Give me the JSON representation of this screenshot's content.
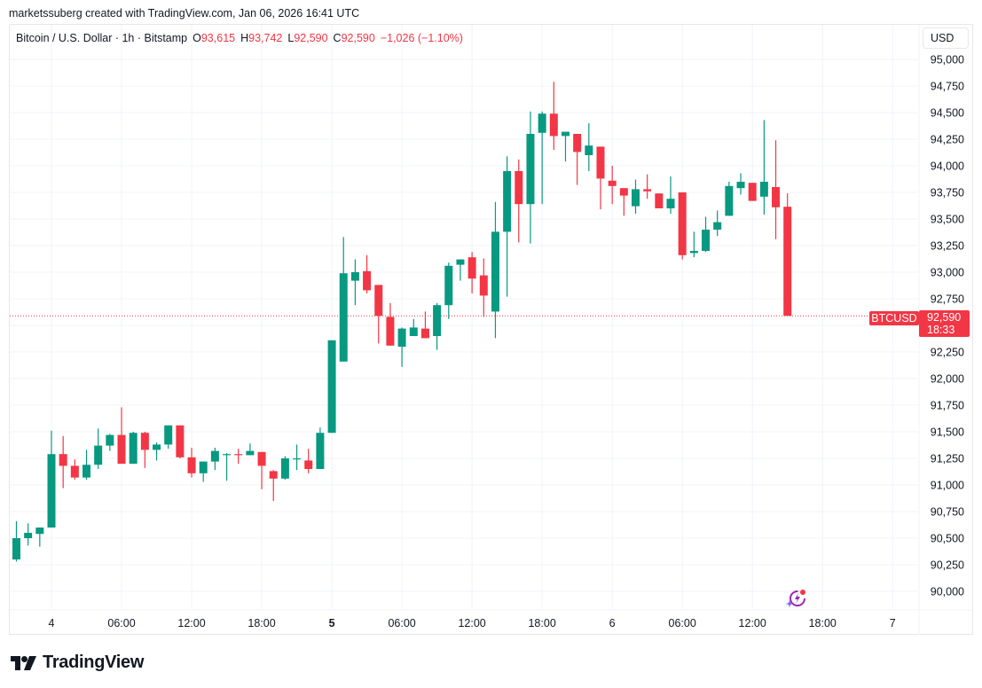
{
  "credit": "marketssuberg created with TradingView.com, Jan 06, 2026 16:41 UTC",
  "legend": {
    "symbol": "Bitcoin / U.S. Dollar · 1h · Bitstamp",
    "o_label": "O",
    "o": "93,615",
    "h_label": "H",
    "h": "93,742",
    "l_label": "L",
    "l": "92,590",
    "c_label": "C",
    "c": "92,590",
    "change": "−1,026 (−1.10%)"
  },
  "currency_button": "USD",
  "last_price": {
    "symbol": "BTCUSD",
    "price": "92,590",
    "countdown": "18:33"
  },
  "logo": "TradingView",
  "colors": {
    "up": "#089981",
    "down": "#f23645",
    "grid": "#f0f3fa",
    "text": "#131722"
  },
  "chart_data": {
    "type": "candlestick",
    "title": "Bitcoin / U.S. Dollar · 1h · Bitstamp",
    "interval": "1h",
    "ylim": [
      89900,
      95100
    ],
    "y_ticks": [
      95000,
      94750,
      94500,
      94250,
      94000,
      93750,
      93500,
      93250,
      93000,
      92750,
      92500,
      92250,
      92000,
      91750,
      91500,
      91250,
      91000,
      90750,
      90500,
      90250,
      90000
    ],
    "y_tick_labels": [
      "95,000",
      "94,750",
      "94,500",
      "94,250",
      "94,000",
      "93,750",
      "93,500",
      "93,250",
      "93,000",
      "92,750",
      "92,500",
      "92,250",
      "92,000",
      "91,750",
      "91,500",
      "91,250",
      "91,000",
      "90,750",
      "90,500",
      "90,250",
      "90,000"
    ],
    "x_tick_labels": [
      {
        "label": "4",
        "hour": 0,
        "bold": false
      },
      {
        "label": "06:00",
        "hour": 6
      },
      {
        "label": "12:00",
        "hour": 12
      },
      {
        "label": "18:00",
        "hour": 18
      },
      {
        "label": "5",
        "hour": 24,
        "bold": true
      },
      {
        "label": "06:00",
        "hour": 30
      },
      {
        "label": "12:00",
        "hour": 36
      },
      {
        "label": "18:00",
        "hour": 42
      },
      {
        "label": "6",
        "hour": 48
      },
      {
        "label": "06:00",
        "hour": 54
      },
      {
        "label": "12:00",
        "hour": 60
      },
      {
        "label": "18:00",
        "hour": 66
      },
      {
        "label": "7",
        "hour": 72
      }
    ],
    "last_price_line": 92590,
    "candles_start_hour": -3,
    "candles": [
      [
        90300,
        90660,
        90280,
        90500
      ],
      [
        90500,
        90640,
        90430,
        90550
      ],
      [
        90540,
        90600,
        90420,
        90600
      ],
      [
        90600,
        91510,
        90600,
        91290
      ],
      [
        91290,
        91460,
        90970,
        91180
      ],
      [
        91180,
        91240,
        91050,
        91070
      ],
      [
        91070,
        91330,
        91050,
        91190
      ],
      [
        91190,
        91530,
        91150,
        91370
      ],
      [
        91370,
        91480,
        91320,
        91470
      ],
      [
        91470,
        91730,
        91200,
        91200
      ],
      [
        91200,
        91500,
        91200,
        91490
      ],
      [
        91490,
        91500,
        91160,
        91330
      ],
      [
        91330,
        91400,
        91230,
        91380
      ],
      [
        91380,
        91550,
        91340,
        91560
      ],
      [
        91560,
        91560,
        91250,
        91260
      ],
      [
        91260,
        91350,
        91070,
        91110
      ],
      [
        91110,
        91220,
        91030,
        91220
      ],
      [
        91220,
        91350,
        91140,
        91320
      ],
      [
        91290,
        91300,
        91040,
        91290
      ],
      [
        91290,
        91340,
        91200,
        91280
      ],
      [
        91280,
        91390,
        91290,
        91320
      ],
      [
        91310,
        91310,
        90960,
        91180
      ],
      [
        91130,
        91140,
        90850,
        91060
      ],
      [
        91060,
        91270,
        91050,
        91250
      ],
      [
        91240,
        91380,
        91140,
        91250
      ],
      [
        91230,
        91340,
        91110,
        91150
      ],
      [
        91150,
        91540,
        91160,
        91490
      ],
      [
        91490,
        92360,
        91490,
        92360
      ],
      [
        92160,
        93330,
        92230,
        92990
      ],
      [
        92920,
        93120,
        92690,
        93000
      ],
      [
        93010,
        93160,
        92800,
        92830
      ],
      [
        92880,
        92880,
        92330,
        92590
      ],
      [
        92580,
        92710,
        92310,
        92310
      ],
      [
        92300,
        92480,
        92110,
        92470
      ],
      [
        92400,
        92560,
        92400,
        92480
      ],
      [
        92470,
        92630,
        92400,
        92380
      ],
      [
        92400,
        92710,
        92270,
        92690
      ],
      [
        92690,
        93090,
        92560,
        93060
      ],
      [
        93070,
        93120,
        92920,
        93120
      ],
      [
        93140,
        93190,
        92800,
        92940
      ],
      [
        92970,
        93130,
        92580,
        92780
      ],
      [
        92630,
        93660,
        92380,
        93380
      ],
      [
        93380,
        94090,
        92770,
        93950
      ],
      [
        93950,
        94060,
        93280,
        93640
      ],
      [
        93640,
        94510,
        93270,
        94300
      ],
      [
        94310,
        94510,
        93640,
        94490
      ],
      [
        94490,
        94790,
        94150,
        94280
      ],
      [
        94280,
        94250,
        94040,
        94320
      ],
      [
        94300,
        94220,
        93820,
        94130
      ],
      [
        94100,
        94400,
        93950,
        94190
      ],
      [
        94180,
        94180,
        93590,
        93880
      ],
      [
        93860,
        94000,
        93640,
        93810
      ],
      [
        93790,
        93730,
        93530,
        93720
      ],
      [
        93620,
        93870,
        93550,
        93780
      ],
      [
        93780,
        93920,
        93690,
        93760
      ],
      [
        93740,
        93720,
        93630,
        93600
      ],
      [
        93600,
        93900,
        93550,
        93690
      ],
      [
        93750,
        93750,
        93120,
        93160
      ],
      [
        93180,
        93380,
        93140,
        93200
      ],
      [
        93200,
        93520,
        93190,
        93400
      ],
      [
        93400,
        93580,
        93340,
        93470
      ],
      [
        93530,
        93850,
        93530,
        93810
      ],
      [
        93790,
        93930,
        93730,
        93850
      ],
      [
        93840,
        93840,
        93720,
        93670
      ],
      [
        93710,
        94430,
        93540,
        93850
      ],
      [
        93800,
        94240,
        93310,
        93610
      ],
      [
        93615,
        93742,
        92590,
        92590
      ]
    ],
    "legend": [],
    "grid": true
  }
}
